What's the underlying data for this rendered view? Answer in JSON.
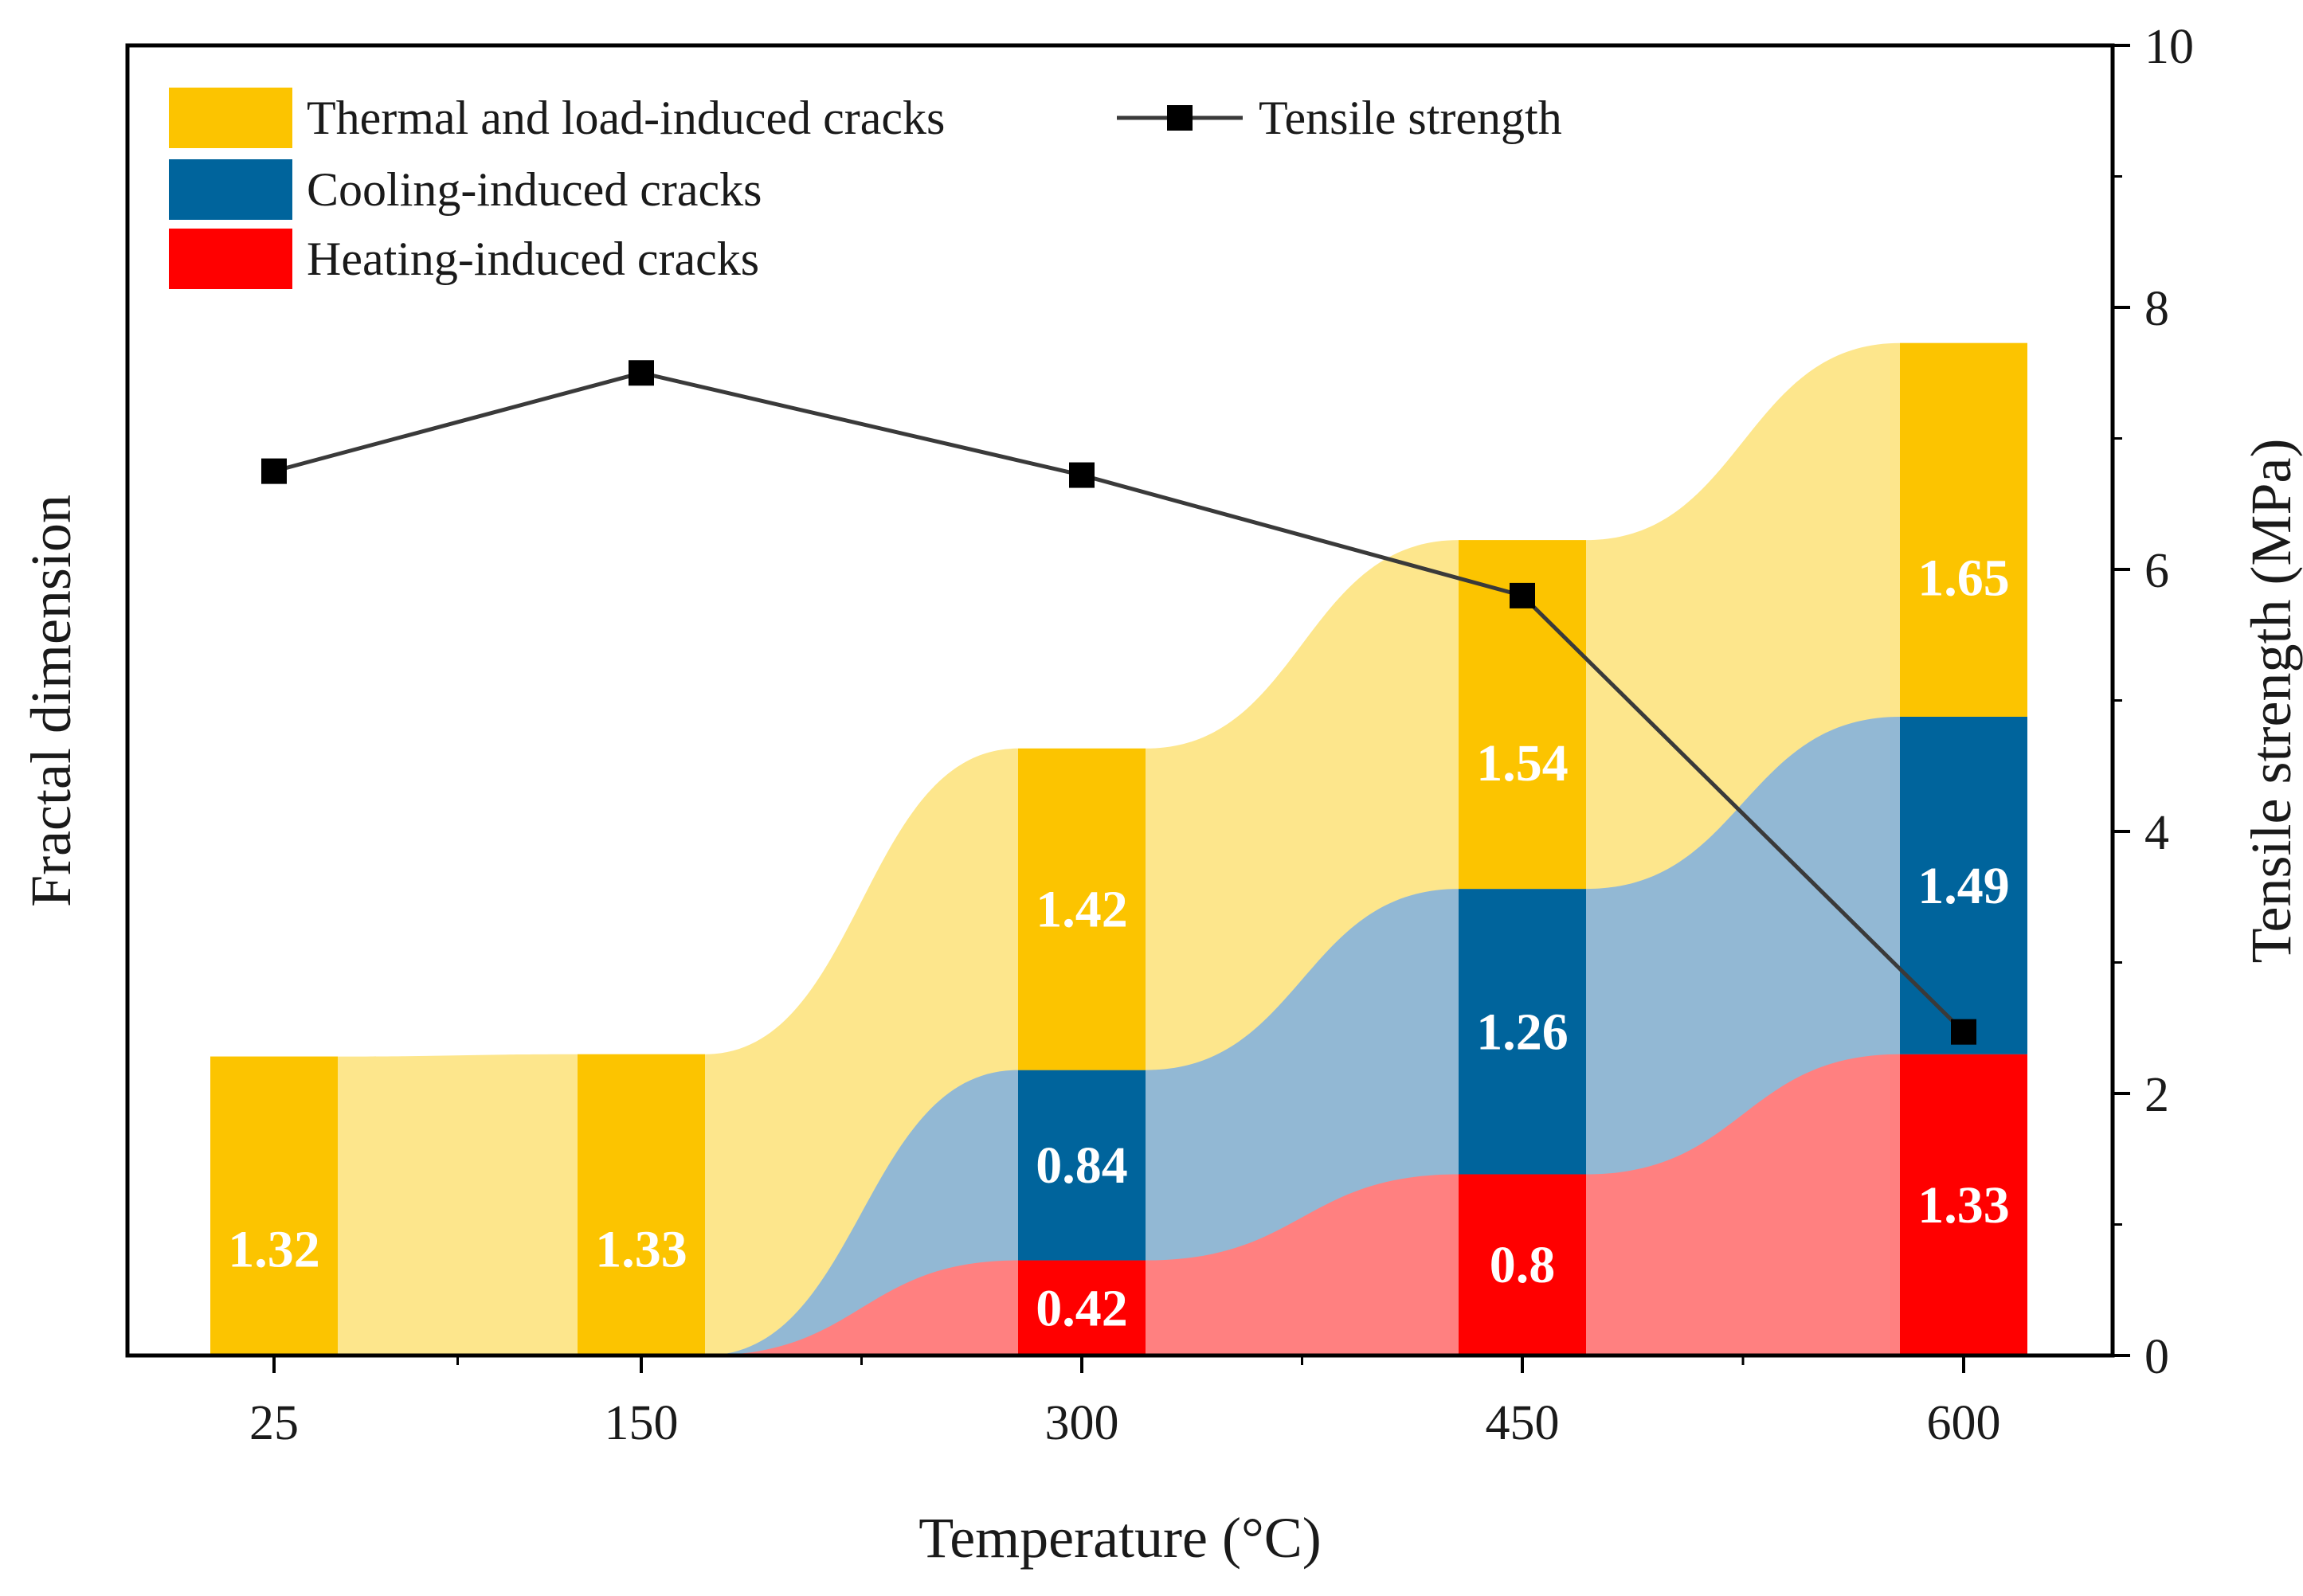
{
  "chart_data": {
    "type": "bar",
    "categories": [
      "25",
      "150",
      "300",
      "450",
      "600"
    ],
    "xlabel": "Temperature (°C)",
    "ylabel": "Fractal dimension",
    "y2label": "Tensile strength (MPa)",
    "y2lim": [
      0,
      10
    ],
    "y2ticks": [
      "0",
      "2",
      "4",
      "6",
      "8",
      "10"
    ],
    "series": [
      {
        "name": "Heating-induced cracks",
        "color": "#ff0000",
        "fill_color": "#ff8080",
        "values": [
          0,
          0,
          0.42,
          0.8,
          1.33
        ],
        "labels": [
          "",
          "",
          "0.42",
          "0.8",
          "1.33"
        ]
      },
      {
        "name": "Cooling-induced cracks",
        "color": "#00649c",
        "fill_color": "#92b8d4",
        "values": [
          0,
          0,
          0.84,
          1.26,
          1.49
        ],
        "labels": [
          "",
          "",
          "0.84",
          "1.26",
          "1.49"
        ]
      },
      {
        "name": "Thermal and load-induced cracks",
        "color": "#fcc400",
        "fill_color": "#fde68c",
        "values": [
          1.32,
          1.33,
          1.42,
          1.54,
          1.65
        ],
        "labels": [
          "1.32",
          "1.33",
          "1.42",
          "1.54",
          "1.65"
        ]
      }
    ],
    "line_series": {
      "name": "Tensile strength",
      "color": "#3a3a3a",
      "marker_color": "#000000",
      "values": [
        6.75,
        7.5,
        6.72,
        5.8,
        2.47
      ]
    },
    "legend": [
      "Thermal and load-induced cracks",
      "Cooling-induced cracks",
      "Heating-induced cracks",
      "Tensile strength"
    ],
    "legend_position": "top-left"
  }
}
